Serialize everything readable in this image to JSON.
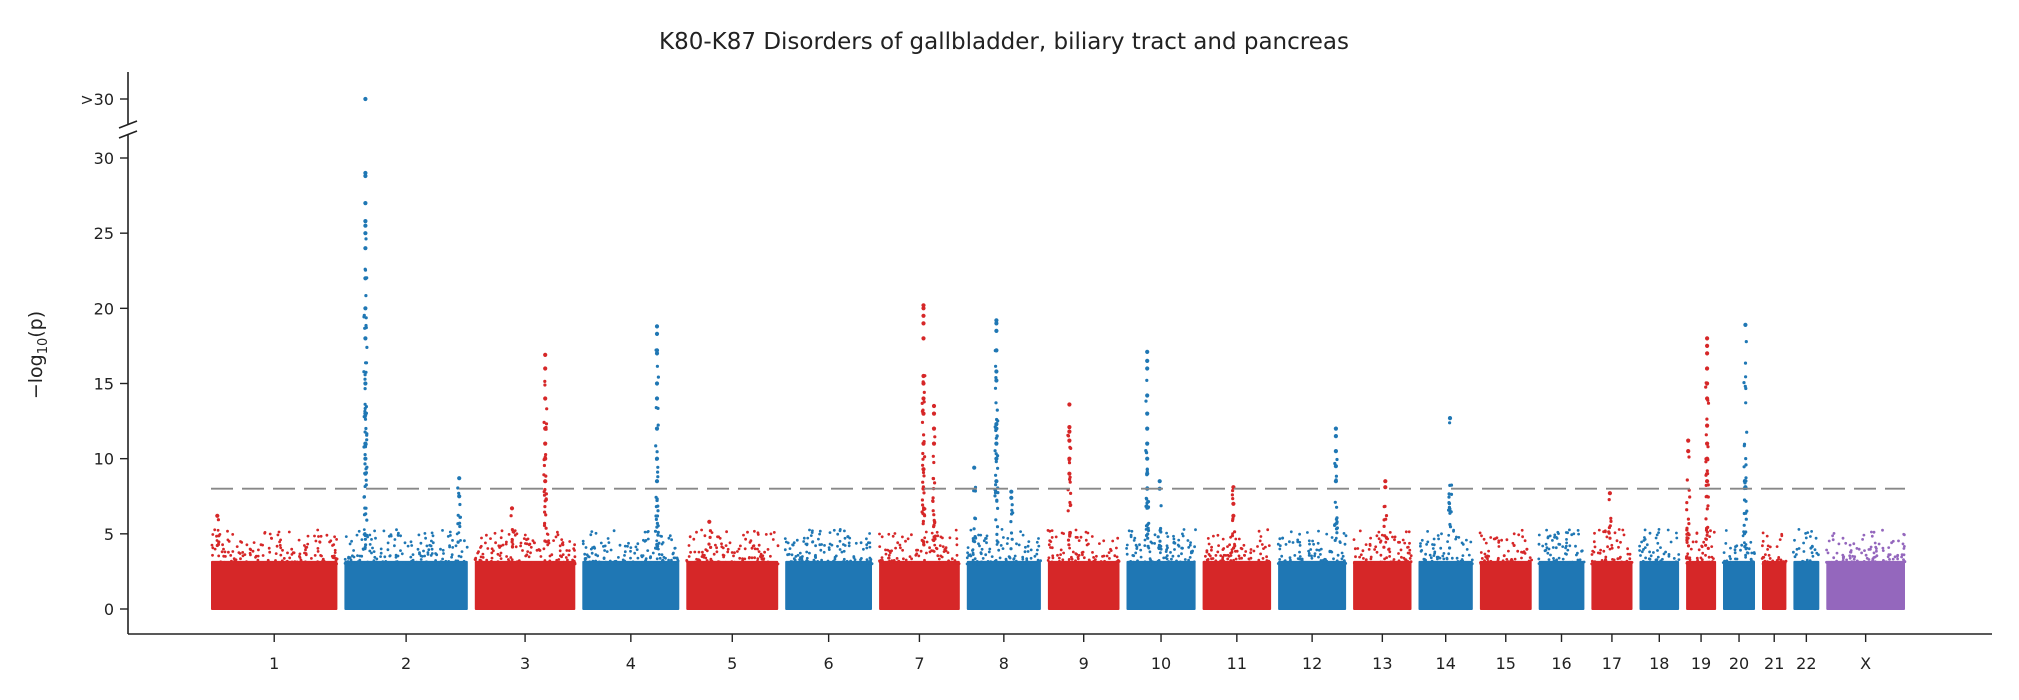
{
  "chart_data": {
    "type": "scatter",
    "title": "K80-K87 Disorders of gallbladder, biliary tract and pancreas",
    "ylabel": "−log10(p)",
    "xlabel": "",
    "ylim": [
      0,
      30
    ],
    "yticks": [
      0,
      5,
      10,
      15,
      20,
      25,
      30
    ],
    "capped_tick_label": ">30",
    "threshold": 8,
    "grid": false,
    "colors": {
      "odd": "#d62728",
      "even": "#1f77b4",
      "x": "#9467bd",
      "threshold": "#888888"
    },
    "chromosomes": [
      "1",
      "2",
      "3",
      "4",
      "5",
      "6",
      "7",
      "8",
      "9",
      "10",
      "11",
      "12",
      "13",
      "14",
      "15",
      "16",
      "17",
      "18",
      "19",
      "20",
      "21",
      "22",
      "X"
    ],
    "peaks": [
      {
        "chrom": "1",
        "pos": 0.05,
        "values": [
          6.2
        ]
      },
      {
        "chrom": "2",
        "pos": 0.17,
        "values": [
          9,
          10,
          11,
          13,
          15,
          18,
          20,
          22,
          24,
          25,
          25.5,
          25.8,
          27,
          28.8,
          29,
          "capped"
        ]
      },
      {
        "chrom": "2",
        "pos": 0.93,
        "values": [
          7.5,
          8.7
        ]
      },
      {
        "chrom": "3",
        "pos": 0.37,
        "values": [
          6.7
        ]
      },
      {
        "chrom": "3",
        "pos": 0.7,
        "values": [
          8.5,
          10,
          11,
          12,
          14,
          16,
          16.9
        ]
      },
      {
        "chrom": "4",
        "pos": 0.77,
        "values": [
          8.5,
          10,
          12,
          14,
          15,
          17,
          17.2,
          18.3,
          18.8
        ]
      },
      {
        "chrom": "5",
        "pos": 0.25,
        "values": [
          5.8
        ]
      },
      {
        "chrom": "7",
        "pos": 0.55,
        "values": [
          8,
          9.3,
          11,
          13,
          14,
          15,
          15.5,
          18,
          19,
          19.5,
          20,
          20.2
        ]
      },
      {
        "chrom": "7",
        "pos": 0.68,
        "values": [
          11,
          12,
          13,
          13.5
        ]
      },
      {
        "chrom": "8",
        "pos": 0.1,
        "values": [
          9.4
        ]
      },
      {
        "chrom": "8",
        "pos": 0.4,
        "values": [
          8.5,
          10,
          11,
          12,
          12.3,
          15.2,
          15.8,
          17.2,
          18.5,
          19,
          19.2
        ]
      },
      {
        "chrom": "8",
        "pos": 0.6,
        "values": [
          7.4,
          7.8
        ]
      },
      {
        "chrom": "9",
        "pos": 0.3,
        "values": [
          9,
          10,
          11.2,
          11.8,
          12.1,
          13.6
        ]
      },
      {
        "chrom": "10",
        "pos": 0.3,
        "values": [
          8,
          9,
          10,
          11,
          12,
          13,
          14.2,
          16,
          16.5,
          17.1
        ]
      },
      {
        "chrom": "10",
        "pos": 0.48,
        "values": [
          8,
          8.5
        ]
      },
      {
        "chrom": "11",
        "pos": 0.45,
        "values": [
          6.2,
          7,
          8.1
        ]
      },
      {
        "chrom": "12",
        "pos": 0.85,
        "values": [
          8.5,
          9.5,
          10.5,
          11.5,
          12
        ]
      },
      {
        "chrom": "13",
        "pos": 0.55,
        "values": [
          8.1,
          8.5
        ]
      },
      {
        "chrom": "14",
        "pos": 0.58,
        "values": [
          12.7
        ]
      },
      {
        "chrom": "17",
        "pos": 0.45,
        "values": [
          7.7
        ]
      },
      {
        "chrom": "19",
        "pos": 0.07,
        "values": [
          10.5,
          11.2
        ]
      },
      {
        "chrom": "19",
        "pos": 0.7,
        "values": [
          8.5,
          10,
          11,
          12.2,
          14,
          15,
          16,
          17,
          17.5,
          18
        ]
      },
      {
        "chrom": "20",
        "pos": 0.7,
        "values": [
          8.1,
          18.9
        ]
      }
    ]
  }
}
